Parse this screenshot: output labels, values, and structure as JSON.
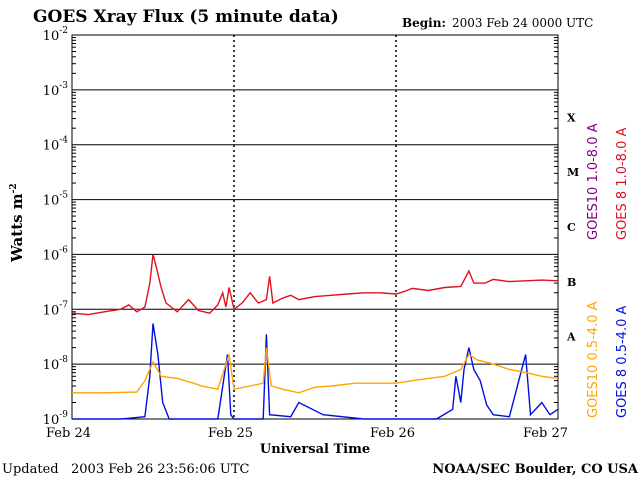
{
  "header": {
    "title": "GOES Xray Flux (5 minute data)",
    "begin_label": "Begin:",
    "begin_value": "2003 Feb 24 0000 UTC"
  },
  "footer": {
    "updated_label": "Updated",
    "updated_value": "2003 Feb 26 23:56:06 UTC",
    "credit": "NOAA/SEC Boulder, CO USA"
  },
  "colors": {
    "goes10_long": "#800080",
    "goes8_long": "#e01020",
    "goes10_short": "#ffa500",
    "goes8_short": "#0010e0",
    "grid": "#000000"
  },
  "chart_data": {
    "type": "line",
    "title": "GOES Xray Flux (5 minute data)",
    "xlabel": "Universal Time",
    "ylabel": "Watts m",
    "ylabel_sup": "-2",
    "y_scale": "log",
    "ylim": [
      1e-09,
      0.01
    ],
    "x_unit": "days since 2003 Feb 24 0000 UTC",
    "xlim": [
      0,
      3
    ],
    "x_ticks": [
      {
        "x": 0,
        "label": "Feb 24"
      },
      {
        "x": 1,
        "label": "Feb 25"
      },
      {
        "x": 2,
        "label": "Feb 26"
      },
      {
        "x": 3,
        "label": "Feb 27"
      }
    ],
    "y_ticks": [
      {
        "exp": -2,
        "base": "10",
        "sup": "-2"
      },
      {
        "exp": -3,
        "base": "10",
        "sup": "-3"
      },
      {
        "exp": -4,
        "base": "10",
        "sup": "-4"
      },
      {
        "exp": -5,
        "base": "10",
        "sup": "-5"
      },
      {
        "exp": -6,
        "base": "10",
        "sup": "-6"
      },
      {
        "exp": -7,
        "base": "10",
        "sup": "-7"
      },
      {
        "exp": -8,
        "base": "10",
        "sup": "-8"
      },
      {
        "exp": -9,
        "base": "10",
        "sup": "-9"
      }
    ],
    "flare_classes": [
      {
        "label": "X",
        "exp": -3.5
      },
      {
        "label": "M",
        "exp": -4.5
      },
      {
        "label": "C",
        "exp": -5.5
      },
      {
        "label": "B",
        "exp": -6.5
      },
      {
        "label": "A",
        "exp": -7.5
      }
    ],
    "grid": true,
    "legend": [
      {
        "label": "GOES10 1.0-8.0 A",
        "color": "#800080"
      },
      {
        "label": "GOES 8 1.0-8.0 A",
        "color": "#e01020"
      },
      {
        "label": "GOES10 0.5-4.0 A",
        "color": "#ffa500"
      },
      {
        "label": "GOES 8 0.5-4.0 A",
        "color": "#0010e0"
      }
    ],
    "series": [
      {
        "name": "GOES 8 1.0-8.0 A",
        "color": "#e01020",
        "points": [
          [
            0.0,
            8.5e-08
          ],
          [
            0.1,
            8e-08
          ],
          [
            0.2,
            9e-08
          ],
          [
            0.3,
            1e-07
          ],
          [
            0.35,
            1.2e-07
          ],
          [
            0.4,
            9e-08
          ],
          [
            0.45,
            1.1e-07
          ],
          [
            0.48,
            3e-07
          ],
          [
            0.5,
            1e-06
          ],
          [
            0.52,
            6e-07
          ],
          [
            0.55,
            2.5e-07
          ],
          [
            0.58,
            1.3e-07
          ],
          [
            0.65,
            9e-08
          ],
          [
            0.72,
            1.5e-07
          ],
          [
            0.78,
            9.5e-08
          ],
          [
            0.85,
            8.5e-08
          ],
          [
            0.9,
            1.2e-07
          ],
          [
            0.93,
            2e-07
          ],
          [
            0.95,
            1.1e-07
          ],
          [
            0.97,
            2.5e-07
          ],
          [
            1.0,
            1e-07
          ],
          [
            1.05,
            1.3e-07
          ],
          [
            1.1,
            2e-07
          ],
          [
            1.15,
            1.3e-07
          ],
          [
            1.2,
            1.5e-07
          ],
          [
            1.22,
            4e-07
          ],
          [
            1.24,
            1.3e-07
          ],
          [
            1.3,
            1.6e-07
          ],
          [
            1.35,
            1.8e-07
          ],
          [
            1.4,
            1.5e-07
          ],
          [
            1.5,
            1.7e-07
          ],
          [
            1.6,
            1.8e-07
          ],
          [
            1.7,
            1.9e-07
          ],
          [
            1.8,
            2e-07
          ],
          [
            1.9,
            2e-07
          ],
          [
            2.0,
            1.9e-07
          ],
          [
            2.05,
            2.1e-07
          ],
          [
            2.1,
            2.4e-07
          ],
          [
            2.2,
            2.2e-07
          ],
          [
            2.3,
            2.5e-07
          ],
          [
            2.4,
            2.6e-07
          ],
          [
            2.45,
            5e-07
          ],
          [
            2.48,
            3e-07
          ],
          [
            2.55,
            3e-07
          ],
          [
            2.6,
            3.5e-07
          ],
          [
            2.7,
            3.2e-07
          ],
          [
            2.8,
            3.3e-07
          ],
          [
            2.9,
            3.4e-07
          ],
          [
            3.0,
            3.3e-07
          ]
        ]
      },
      {
        "name": "GOES 8 0.5-4.0 A",
        "color": "#0010e0",
        "points": [
          [
            0.0,
            1e-09
          ],
          [
            0.1,
            1e-09
          ],
          [
            0.3,
            1e-09
          ],
          [
            0.45,
            1.1e-09
          ],
          [
            0.48,
            6e-09
          ],
          [
            0.5,
            5.5e-08
          ],
          [
            0.53,
            1.5e-08
          ],
          [
            0.56,
            2e-09
          ],
          [
            0.6,
            1e-09
          ],
          [
            0.9,
            1e-09
          ],
          [
            0.96,
            1.5e-08
          ],
          [
            0.98,
            1.2e-09
          ],
          [
            1.0,
            1e-09
          ],
          [
            1.18,
            1e-09
          ],
          [
            1.2,
            3.5e-08
          ],
          [
            1.22,
            1.2e-09
          ],
          [
            1.35,
            1.1e-09
          ],
          [
            1.4,
            2e-09
          ],
          [
            1.55,
            1.2e-09
          ],
          [
            1.8,
            1e-09
          ],
          [
            2.0,
            1e-09
          ],
          [
            2.25,
            1e-09
          ],
          [
            2.35,
            1.5e-09
          ],
          [
            2.37,
            6e-09
          ],
          [
            2.4,
            2e-09
          ],
          [
            2.42,
            8e-09
          ],
          [
            2.45,
            2e-08
          ],
          [
            2.48,
            8e-09
          ],
          [
            2.52,
            5e-09
          ],
          [
            2.56,
            1.8e-09
          ],
          [
            2.6,
            1.2e-09
          ],
          [
            2.7,
            1.1e-09
          ],
          [
            2.8,
            1.5e-08
          ],
          [
            2.83,
            1.2e-09
          ],
          [
            2.9,
            2e-09
          ],
          [
            2.95,
            1.2e-09
          ],
          [
            3.0,
            1.5e-09
          ]
        ]
      },
      {
        "name": "GOES10 0.5-4.0 A",
        "color": "#ffa500",
        "points": [
          [
            0.0,
            3e-09
          ],
          [
            0.2,
            3e-09
          ],
          [
            0.4,
            3.1e-09
          ],
          [
            0.45,
            5e-09
          ],
          [
            0.5,
            1.1e-08
          ],
          [
            0.55,
            6e-09
          ],
          [
            0.65,
            5.5e-09
          ],
          [
            0.75,
            4.5e-09
          ],
          [
            0.8,
            4e-09
          ],
          [
            0.9,
            3.5e-09
          ],
          [
            0.97,
            1.5e-08
          ],
          [
            1.0,
            3.5e-09
          ],
          [
            1.1,
            4e-09
          ],
          [
            1.18,
            4.5e-09
          ],
          [
            1.2,
            2e-08
          ],
          [
            1.23,
            4e-09
          ],
          [
            1.3,
            3.5e-09
          ],
          [
            1.4,
            3e-09
          ],
          [
            1.5,
            3.8e-09
          ],
          [
            1.6,
            4e-09
          ],
          [
            1.75,
            4.5e-09
          ],
          [
            1.9,
            4.5e-09
          ],
          [
            2.0,
            4.5e-09
          ],
          [
            2.1,
            5e-09
          ],
          [
            2.2,
            5.5e-09
          ],
          [
            2.3,
            6e-09
          ],
          [
            2.4,
            8e-09
          ],
          [
            2.45,
            1.5e-08
          ],
          [
            2.5,
            1.2e-08
          ],
          [
            2.6,
            1e-08
          ],
          [
            2.7,
            8e-09
          ],
          [
            2.8,
            7e-09
          ],
          [
            2.9,
            6e-09
          ],
          [
            3.0,
            5.5e-09
          ]
        ]
      }
    ]
  }
}
